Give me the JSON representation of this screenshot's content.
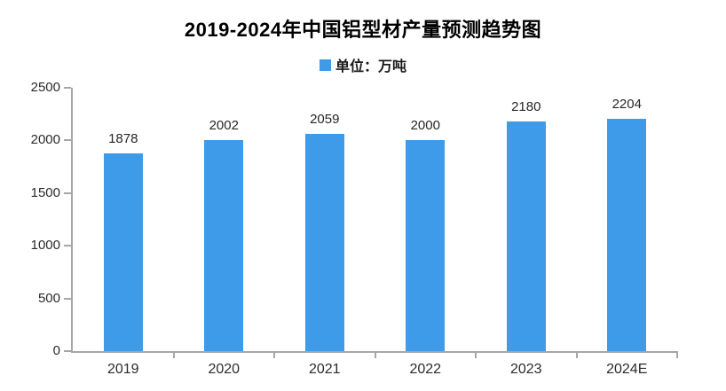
{
  "chart": {
    "title": "2019-2024年中国铝型材产量预测趋势图",
    "legend_label": "单位：万吨",
    "bar_color": "#3E9BE9",
    "axis_color": "#A6A6A6",
    "text_color": "#262626"
  },
  "chart_data": {
    "type": "bar",
    "categories": [
      "2019",
      "2020",
      "2021",
      "2022",
      "2023",
      "2024E"
    ],
    "values": [
      1878,
      2002,
      2059,
      2000,
      2180,
      2204
    ],
    "title": "2019-2024年中国铝型材产量预测趋势图",
    "legend": "单位：万吨",
    "xlabel": "",
    "ylabel": "",
    "ylim": [
      0,
      2500
    ],
    "yticks": [
      0,
      500,
      1000,
      1500,
      2000,
      2500
    ],
    "grid": false,
    "legend_position": "top",
    "data_labels": true
  }
}
